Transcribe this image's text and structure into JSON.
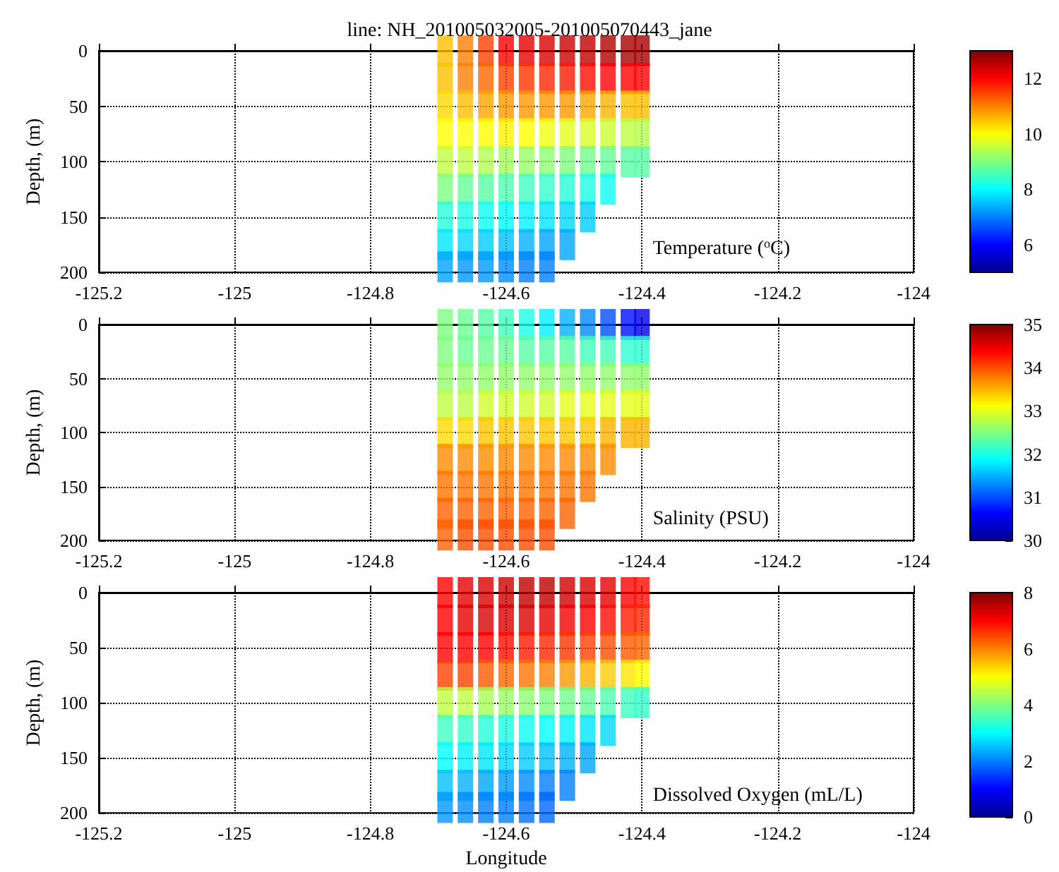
{
  "chart_data": [
    {
      "type": "scatter",
      "title": "line: NH_201005032005-201005070443_jane",
      "ylabel": "Depth, (m)",
      "annotations": [
        "Temperature ($^{o}$C)"
      ],
      "marker": "square",
      "grid": true,
      "xlim": [
        -125.2,
        -124
      ],
      "xticks": [
        -125.2,
        -125,
        -124.8,
        -124.6,
        -124.4,
        -124.2,
        -124
      ],
      "ylim": [
        200,
        0
      ],
      "yticks": [
        0,
        50,
        100,
        150,
        200
      ],
      "clim": [
        5,
        13
      ],
      "cticks": [
        6,
        8,
        10,
        12
      ],
      "x": [
        -124.69,
        -124.69,
        -124.69,
        -124.69,
        -124.69,
        -124.69,
        -124.69,
        -124.69,
        -124.69,
        -124.66,
        -124.66,
        -124.66,
        -124.66,
        -124.66,
        -124.66,
        -124.66,
        -124.66,
        -124.66,
        -124.63,
        -124.63,
        -124.63,
        -124.63,
        -124.63,
        -124.63,
        -124.63,
        -124.63,
        -124.63,
        -124.6,
        -124.6,
        -124.6,
        -124.6,
        -124.6,
        -124.6,
        -124.6,
        -124.6,
        -124.6,
        -124.57,
        -124.57,
        -124.57,
        -124.57,
        -124.57,
        -124.57,
        -124.57,
        -124.57,
        -124.57,
        -124.54,
        -124.54,
        -124.54,
        -124.54,
        -124.54,
        -124.54,
        -124.54,
        -124.54,
        -124.54,
        -124.51,
        -124.51,
        -124.51,
        -124.51,
        -124.51,
        -124.51,
        -124.51,
        -124.51,
        -124.48,
        -124.48,
        -124.48,
        -124.48,
        -124.48,
        -124.48,
        -124.48,
        -124.45,
        -124.45,
        -124.45,
        -124.45,
        -124.45,
        -124.45,
        -124.42,
        -124.42,
        -124.42,
        -124.42,
        -124.42,
        -124.4,
        -124.4,
        -124.4,
        -124.4,
        -124.4
      ],
      "values": [
        0,
        25,
        50,
        75,
        100,
        125,
        150,
        175,
        195,
        0,
        25,
        50,
        75,
        100,
        125,
        150,
        175,
        195,
        0,
        25,
        50,
        75,
        100,
        125,
        150,
        175,
        195,
        0,
        25,
        50,
        75,
        100,
        125,
        150,
        175,
        195,
        0,
        25,
        50,
        75,
        100,
        125,
        150,
        175,
        195,
        0,
        25,
        50,
        75,
        100,
        125,
        150,
        175,
        195,
        0,
        25,
        50,
        75,
        100,
        125,
        150,
        175,
        0,
        25,
        50,
        75,
        100,
        125,
        150,
        0,
        25,
        50,
        75,
        100,
        125,
        0,
        25,
        50,
        75,
        100,
        0,
        25,
        50,
        75,
        100
      ],
      "cvalues": [
        10.5,
        10.5,
        10.3,
        10,
        9.5,
        9,
        8.3,
        7.8,
        7.3,
        11,
        11,
        10.5,
        10,
        9.5,
        8.8,
        8.2,
        7.7,
        7.2,
        11.5,
        11.2,
        10.7,
        10,
        9.4,
        8.7,
        8.1,
        7.6,
        7.2,
        12,
        11.5,
        10.8,
        10.1,
        9.3,
        8.6,
        8,
        7.5,
        7.1,
        12.2,
        11.6,
        10.8,
        10,
        9.2,
        8.5,
        7.9,
        7.4,
        7,
        12.3,
        11.7,
        10.8,
        9.9,
        9.1,
        8.4,
        7.8,
        7.3,
        7,
        12.4,
        11.8,
        10.8,
        9.8,
        9,
        8.3,
        7.7,
        7.3,
        12.5,
        11.9,
        10.7,
        9.7,
        8.9,
        8.2,
        7.6,
        12.6,
        12,
        10.6,
        9.6,
        8.8,
        8.1,
        12.7,
        12,
        10.5,
        9.5,
        8.7,
        12.7,
        12,
        10.5,
        9.4,
        8.7
      ]
    },
    {
      "type": "scatter",
      "ylabel": "Depth, (m)",
      "annotations": [
        "Salinity (PSU)"
      ],
      "marker": "square",
      "grid": true,
      "xlim": [
        -125.2,
        -124
      ],
      "xticks": [
        -125.2,
        -125,
        -124.8,
        -124.6,
        -124.4,
        -124.2,
        -124
      ],
      "ylim": [
        200,
        0
      ],
      "yticks": [
        0,
        50,
        100,
        150,
        200
      ],
      "clim": [
        30,
        35
      ],
      "cticks": [
        30,
        31,
        32,
        33,
        34,
        35
      ],
      "x": [
        -124.69,
        -124.69,
        -124.69,
        -124.69,
        -124.69,
        -124.69,
        -124.69,
        -124.69,
        -124.69,
        -124.66,
        -124.66,
        -124.66,
        -124.66,
        -124.66,
        -124.66,
        -124.66,
        -124.66,
        -124.66,
        -124.63,
        -124.63,
        -124.63,
        -124.63,
        -124.63,
        -124.63,
        -124.63,
        -124.63,
        -124.63,
        -124.6,
        -124.6,
        -124.6,
        -124.6,
        -124.6,
        -124.6,
        -124.6,
        -124.6,
        -124.6,
        -124.57,
        -124.57,
        -124.57,
        -124.57,
        -124.57,
        -124.57,
        -124.57,
        -124.57,
        -124.57,
        -124.54,
        -124.54,
        -124.54,
        -124.54,
        -124.54,
        -124.54,
        -124.54,
        -124.54,
        -124.54,
        -124.51,
        -124.51,
        -124.51,
        -124.51,
        -124.51,
        -124.51,
        -124.51,
        -124.51,
        -124.48,
        -124.48,
        -124.48,
        -124.48,
        -124.48,
        -124.48,
        -124.48,
        -124.45,
        -124.45,
        -124.45,
        -124.45,
        -124.45,
        -124.45,
        -124.42,
        -124.42,
        -124.42,
        -124.42,
        -124.42,
        -124.4,
        -124.4,
        -124.4,
        -124.4,
        -124.4
      ],
      "values": [
        0,
        25,
        50,
        75,
        100,
        125,
        150,
        175,
        195,
        0,
        25,
        50,
        75,
        100,
        125,
        150,
        175,
        195,
        0,
        25,
        50,
        75,
        100,
        125,
        150,
        175,
        195,
        0,
        25,
        50,
        75,
        100,
        125,
        150,
        175,
        195,
        0,
        25,
        50,
        75,
        100,
        125,
        150,
        175,
        195,
        0,
        25,
        50,
        75,
        100,
        125,
        150,
        175,
        195,
        0,
        25,
        50,
        75,
        100,
        125,
        150,
        175,
        0,
        25,
        50,
        75,
        100,
        125,
        150,
        0,
        25,
        50,
        75,
        100,
        125,
        0,
        25,
        50,
        75,
        100,
        0,
        25,
        50,
        75,
        100
      ],
      "cvalues": [
        32.5,
        32.5,
        32.6,
        32.8,
        33.3,
        33.7,
        33.8,
        33.9,
        33.9,
        32.4,
        32.4,
        32.6,
        32.8,
        33.3,
        33.7,
        33.8,
        33.9,
        34,
        32.3,
        32.4,
        32.6,
        32.9,
        33.4,
        33.7,
        33.8,
        33.9,
        34,
        32.2,
        32.4,
        32.6,
        32.9,
        33.4,
        33.7,
        33.8,
        33.9,
        34,
        32,
        32.3,
        32.6,
        32.9,
        33.4,
        33.7,
        33.8,
        33.9,
        34,
        31.8,
        32.3,
        32.6,
        32.9,
        33.4,
        33.7,
        33.8,
        33.9,
        34,
        31.5,
        32.3,
        32.6,
        33,
        33.4,
        33.7,
        33.8,
        33.9,
        31.3,
        32.2,
        32.6,
        33,
        33.4,
        33.7,
        33.8,
        31,
        32.2,
        32.6,
        33,
        33.5,
        33.7,
        30.7,
        32.1,
        32.6,
        33,
        33.5,
        30.5,
        32.1,
        32.6,
        33,
        33.5
      ]
    },
    {
      "type": "scatter",
      "ylabel": "Depth, (m)",
      "xlabel": "Longitude",
      "annotations": [
        "Dissolved Oxygen (mL/L)"
      ],
      "marker": "square",
      "grid": true,
      "xlim": [
        -125.2,
        -124
      ],
      "xticks": [
        -125.2,
        -125,
        -124.8,
        -124.6,
        -124.4,
        -124.2,
        -124
      ],
      "ylim": [
        200,
        0
      ],
      "yticks": [
        0,
        50,
        100,
        150,
        200
      ],
      "clim": [
        0,
        8
      ],
      "cticks": [
        0,
        2,
        4,
        6,
        8
      ],
      "x": [
        -124.69,
        -124.69,
        -124.69,
        -124.69,
        -124.69,
        -124.69,
        -124.69,
        -124.69,
        -124.69,
        -124.66,
        -124.66,
        -124.66,
        -124.66,
        -124.66,
        -124.66,
        -124.66,
        -124.66,
        -124.66,
        -124.63,
        -124.63,
        -124.63,
        -124.63,
        -124.63,
        -124.63,
        -124.63,
        -124.63,
        -124.63,
        -124.6,
        -124.6,
        -124.6,
        -124.6,
        -124.6,
        -124.6,
        -124.6,
        -124.6,
        -124.6,
        -124.57,
        -124.57,
        -124.57,
        -124.57,
        -124.57,
        -124.57,
        -124.57,
        -124.57,
        -124.57,
        -124.54,
        -124.54,
        -124.54,
        -124.54,
        -124.54,
        -124.54,
        -124.54,
        -124.54,
        -124.54,
        -124.51,
        -124.51,
        -124.51,
        -124.51,
        -124.51,
        -124.51,
        -124.51,
        -124.51,
        -124.48,
        -124.48,
        -124.48,
        -124.48,
        -124.48,
        -124.48,
        -124.48,
        -124.45,
        -124.45,
        -124.45,
        -124.45,
        -124.45,
        -124.45,
        -124.42,
        -124.42,
        -124.42,
        -124.42,
        -124.42,
        -124.4,
        -124.4,
        -124.4,
        -124.4,
        -124.4
      ],
      "values": [
        0,
        25,
        50,
        75,
        100,
        125,
        150,
        175,
        195,
        0,
        25,
        50,
        75,
        100,
        125,
        150,
        175,
        195,
        0,
        25,
        50,
        75,
        100,
        125,
        150,
        175,
        195,
        0,
        25,
        50,
        75,
        100,
        125,
        150,
        175,
        195,
        0,
        25,
        50,
        75,
        100,
        125,
        150,
        175,
        195,
        0,
        25,
        50,
        75,
        100,
        125,
        150,
        175,
        195,
        0,
        25,
        50,
        75,
        100,
        125,
        150,
        175,
        0,
        25,
        50,
        75,
        100,
        125,
        150,
        0,
        25,
        50,
        75,
        100,
        125,
        0,
        25,
        50,
        75,
        100,
        0,
        25,
        50,
        75,
        100
      ],
      "cvalues": [
        7,
        7,
        7,
        6.5,
        4.5,
        3.5,
        3,
        2.5,
        2.2,
        7.2,
        7.2,
        7,
        6.5,
        4.5,
        3.4,
        2.9,
        2.4,
        2.1,
        7.3,
        7.3,
        7,
        6.3,
        4.3,
        3.3,
        2.8,
        2.3,
        2,
        7.4,
        7.3,
        6.9,
        6.2,
        4.2,
        3.2,
        2.7,
        2.2,
        2,
        7.5,
        7.3,
        6.8,
        6.1,
        4.1,
        3.1,
        2.6,
        2.1,
        1.9,
        7.5,
        7.2,
        6.7,
        6,
        4,
        3,
        2.5,
        2,
        1.8,
        7.4,
        7.1,
        6.6,
        5.8,
        3.9,
        2.9,
        2.4,
        2,
        7.3,
        7,
        6.5,
        5.6,
        3.8,
        2.8,
        2.3,
        7.2,
        6.9,
        6.4,
        5.4,
        3.6,
        2.7,
        7,
        6.8,
        6.3,
        5.2,
        3.5,
        6.9,
        6.7,
        6.2,
        5,
        3.4
      ]
    }
  ]
}
